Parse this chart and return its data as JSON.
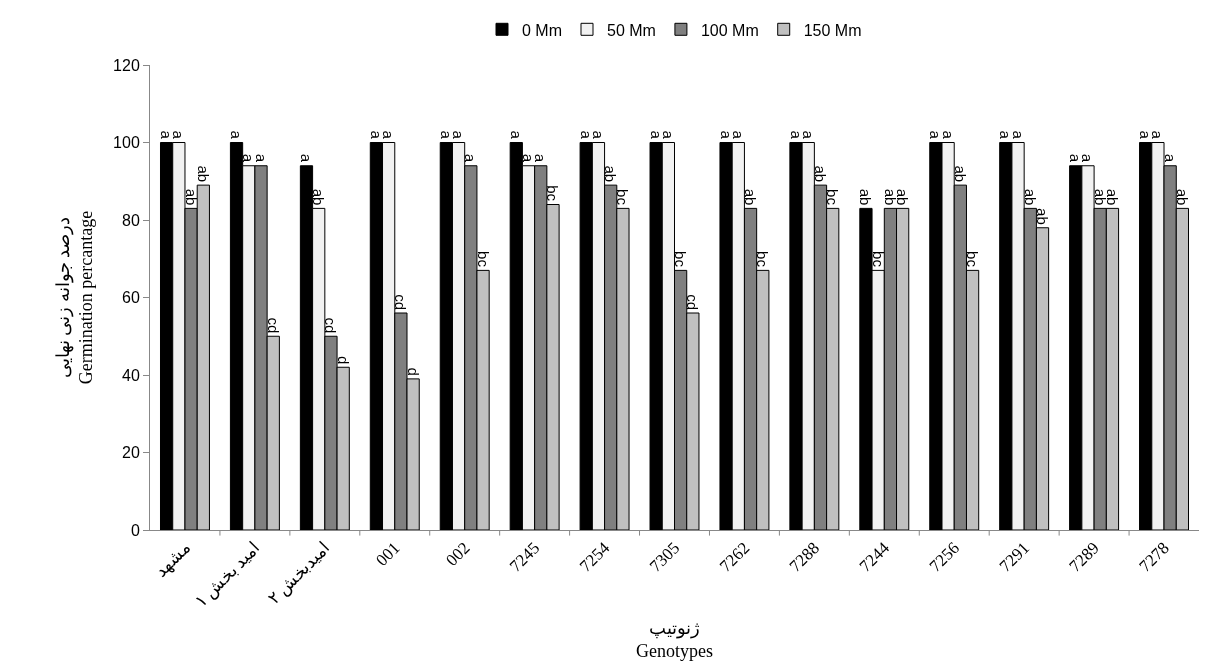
{
  "chart_data": {
    "type": "bar",
    "xlabel": "ژنوتیپ\nGenotypes",
    "ylabel": "درصد جوانه زنی نهایی\nGermination percantage",
    "categories": [
      "مشهد",
      "امید بخش ۱",
      "امیدبخش ۲",
      "001",
      "002",
      "7245",
      "7254",
      "7305",
      "7262",
      "7288",
      "7244",
      "7256",
      "7291",
      "7289",
      "7278"
    ],
    "series": [
      {
        "name": "0 Mm",
        "color": "#000000",
        "values": [
          100,
          100,
          94,
          100,
          100,
          100,
          100,
          100,
          100,
          100,
          83,
          100,
          100,
          94,
          100
        ],
        "value_labels": [
          "a",
          "a",
          "a",
          "a",
          "a",
          "a",
          "a",
          "a",
          "a",
          "a",
          "ab",
          "a",
          "a",
          "a",
          "a"
        ]
      },
      {
        "name": "50 Mm",
        "color": "#f2f2f2",
        "values": [
          100,
          94,
          83,
          100,
          100,
          94,
          100,
          100,
          100,
          100,
          67,
          100,
          100,
          94,
          100
        ],
        "value_labels": [
          "a",
          "a",
          "ab",
          "a",
          "a",
          "a",
          "a",
          "a",
          "a",
          "a",
          "bc",
          "a",
          "a",
          "a",
          "a"
        ]
      },
      {
        "name": "100 Mm",
        "color": "#808080",
        "values": [
          83,
          94,
          50,
          56,
          94,
          94,
          89,
          67,
          83,
          89,
          83,
          89,
          83,
          83,
          94
        ],
        "value_labels": [
          "ab",
          "a",
          "cd",
          "cd",
          "a",
          "a",
          "ab",
          "bc",
          "ab",
          "ab",
          "ab",
          "ab",
          "ab",
          "ab",
          "a"
        ]
      },
      {
        "name": "150 Mm",
        "color": "#c0c0c0",
        "values": [
          89,
          50,
          42,
          39,
          67,
          84,
          83,
          56,
          67,
          83,
          83,
          67,
          78,
          83,
          83
        ],
        "value_labels": [
          "ab",
          "cd",
          "d",
          "d",
          "bc",
          "bc",
          "bc",
          "cd",
          "bc",
          "bc",
          "ab",
          "bc",
          "ab",
          "ab",
          "ab"
        ]
      }
    ],
    "ylim": [
      0,
      120
    ],
    "yticks": [
      0,
      20,
      40,
      60,
      80,
      100,
      120
    ],
    "grid": false,
    "legend": "top"
  }
}
